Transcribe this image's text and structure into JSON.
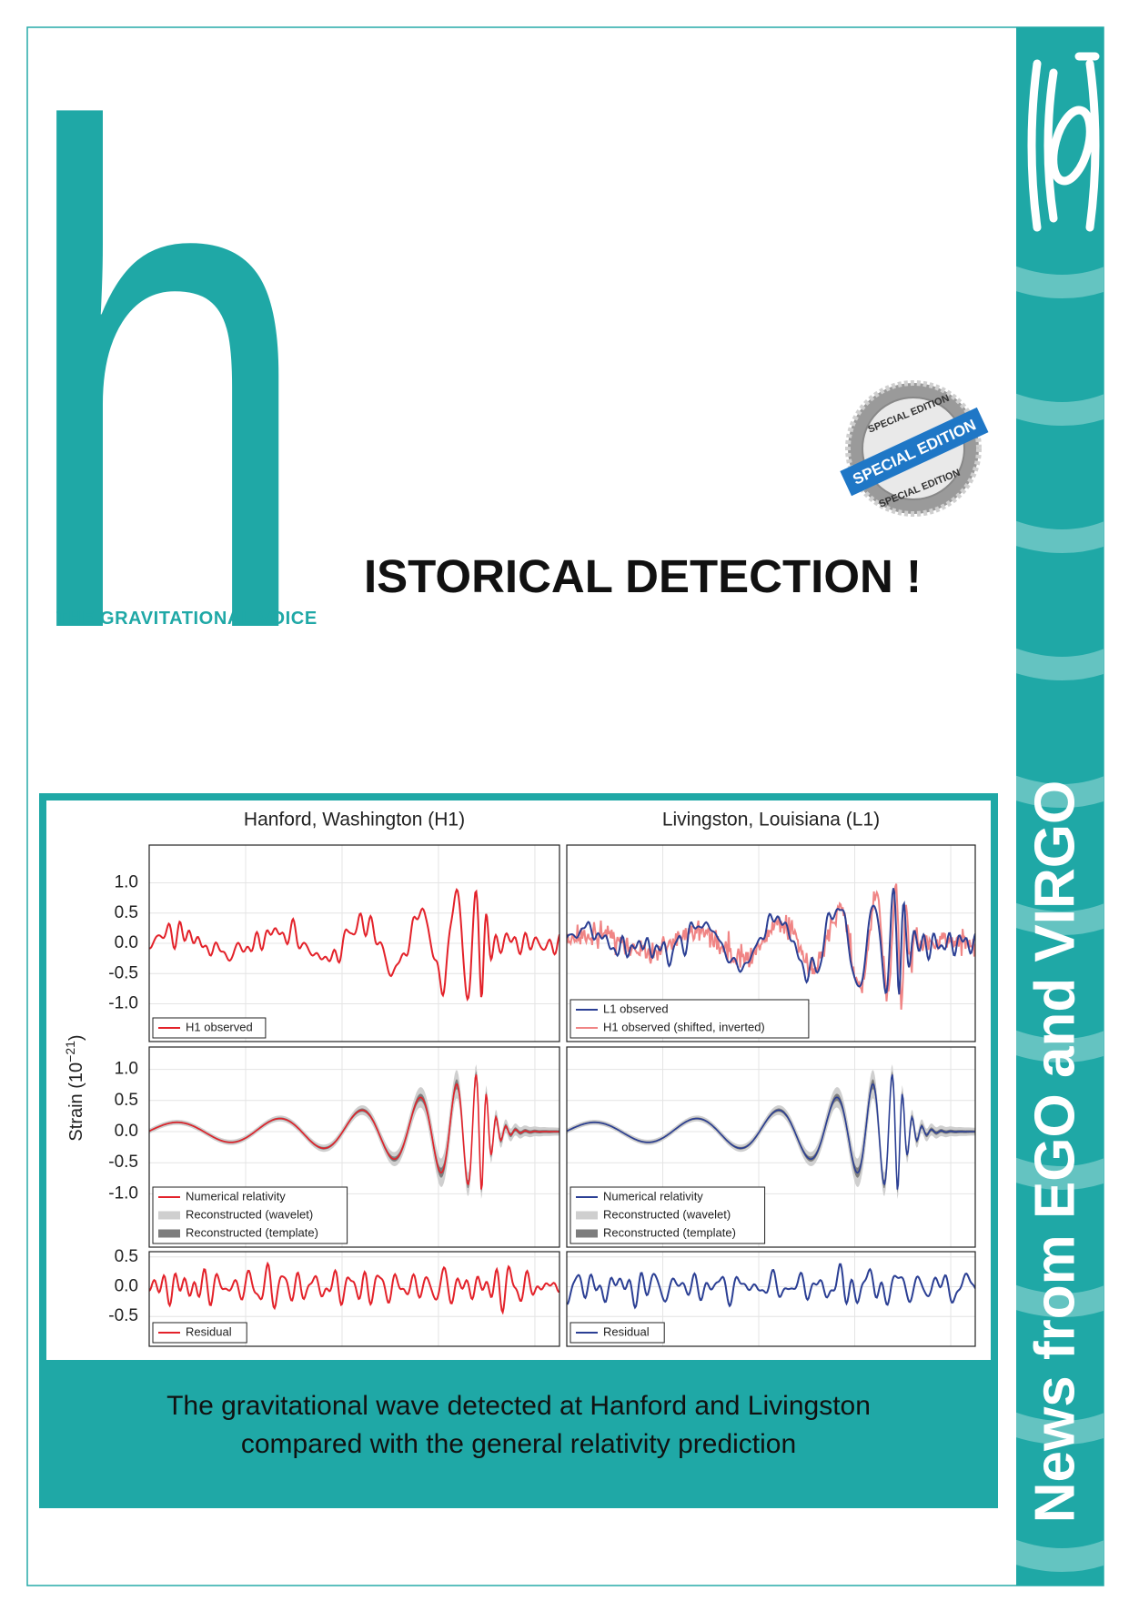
{
  "header": {
    "letter": "h",
    "tagline": "THE GRAVITATIONAL VOICE",
    "title": "ISTORICAL DETECTION !"
  },
  "badge": {
    "top": "SPECIAL EDITION",
    "ribbon": "SPECIAL EDITION",
    "bottom": "SPECIAL EDITION"
  },
  "sidebar": {
    "text": "News from EGO and VIRGO"
  },
  "figure": {
    "columns": [
      "Hanford, Washington (H1)",
      "Livingston, Louisiana (L1)"
    ],
    "y_label": {
      "text": "Strain (10",
      "exponent": "−21",
      "close": ")"
    },
    "rows": [
      {
        "yticks": [
          "1.0",
          "0.5",
          "0.0",
          "-0.5",
          "-1.0"
        ],
        "legends": [
          [
            "H1 observed"
          ],
          [
            "L1 observed",
            "H1 observed (shifted, inverted)"
          ]
        ]
      },
      {
        "yticks": [
          "1.0",
          "0.5",
          "0.0",
          "-0.5",
          "-1.0"
        ],
        "legends": [
          [
            "Numerical relativity",
            "Reconstructed (wavelet)",
            "Reconstructed (template)"
          ],
          [
            "Numerical relativity",
            "Reconstructed (wavelet)",
            "Reconstructed (template)"
          ]
        ]
      },
      {
        "yticks": [
          "0.5",
          "0.0",
          "-0.5"
        ],
        "legends": [
          [
            "Residual"
          ],
          [
            "Residual"
          ]
        ]
      }
    ],
    "caption": [
      "The gravitational wave detected at Hanford and Livingston",
      "compared with the general relativity prediction"
    ]
  }
}
